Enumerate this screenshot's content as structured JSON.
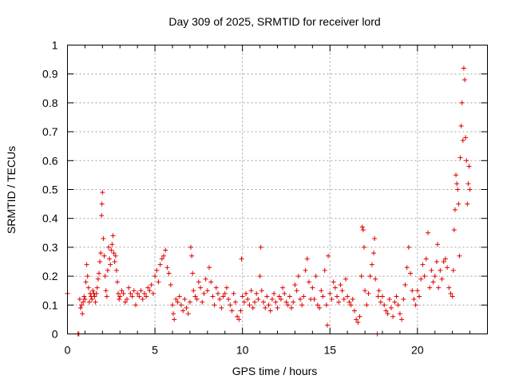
{
  "chart_data": {
    "type": "scatter",
    "title": "Day 309 of 2025, SRMTID for receiver lord",
    "xlabel": "GPS time / hours",
    "ylabel": "SRMTID / TECUs",
    "xlim": [
      0,
      24
    ],
    "ylim": [
      0,
      1
    ],
    "xticks": [
      0,
      5,
      10,
      15,
      20
    ],
    "yticks": [
      0,
      0.1,
      0.2,
      0.3,
      0.4,
      0.5,
      0.6,
      0.7,
      0.8,
      0.9,
      1
    ],
    "xtick_labels": [
      "0",
      "5",
      "10",
      "15",
      "20"
    ],
    "ytick_labels": [
      "0",
      "0.1",
      "0.2",
      "0.3",
      "0.4",
      "0.5",
      "0.6",
      "0.7",
      "0.8",
      "0.9",
      "1"
    ],
    "grid": true,
    "marker": "plus",
    "color": "#e00000",
    "series": [
      {
        "name": "SRMTID",
        "points": [
          [
            0.0,
            0.14
          ],
          [
            0.6,
            0.0
          ],
          [
            0.65,
            0.0
          ],
          [
            0.7,
            0.12
          ],
          [
            0.75,
            0.09
          ],
          [
            0.8,
            0.1
          ],
          [
            0.85,
            0.07
          ],
          [
            0.9,
            0.11
          ],
          [
            0.95,
            0.13
          ],
          [
            1.0,
            0.12
          ],
          [
            1.05,
            0.18
          ],
          [
            1.1,
            0.24
          ],
          [
            1.15,
            0.2
          ],
          [
            1.2,
            0.16
          ],
          [
            1.25,
            0.11
          ],
          [
            1.3,
            0.14
          ],
          [
            1.35,
            0.13
          ],
          [
            1.4,
            0.12
          ],
          [
            1.45,
            0.15
          ],
          [
            1.5,
            0.14
          ],
          [
            1.55,
            0.13
          ],
          [
            1.6,
            0.11
          ],
          [
            1.65,
            0.14
          ],
          [
            1.7,
            0.16
          ],
          [
            1.75,
            0.19
          ],
          [
            1.8,
            0.21
          ],
          [
            1.85,
            0.25
          ],
          [
            1.9,
            0.28
          ],
          [
            1.95,
            0.41
          ],
          [
            1.97,
            0.45
          ],
          [
            2.0,
            0.49
          ],
          [
            2.05,
            0.33
          ],
          [
            2.1,
            0.27
          ],
          [
            2.15,
            0.2
          ],
          [
            2.2,
            0.15
          ],
          [
            2.25,
            0.13
          ],
          [
            2.3,
            0.22
          ],
          [
            2.35,
            0.3
          ],
          [
            2.4,
            0.26
          ],
          [
            2.45,
            0.24
          ],
          [
            2.5,
            0.29
          ],
          [
            2.55,
            0.31
          ],
          [
            2.6,
            0.34
          ],
          [
            2.65,
            0.28
          ],
          [
            2.7,
            0.25
          ],
          [
            2.75,
            0.27
          ],
          [
            2.8,
            0.22
          ],
          [
            2.85,
            0.18
          ],
          [
            2.9,
            0.14
          ],
          [
            2.95,
            0.12
          ],
          [
            3.0,
            0.13
          ],
          [
            3.1,
            0.15
          ],
          [
            3.2,
            0.14
          ],
          [
            3.3,
            0.11
          ],
          [
            3.4,
            0.12
          ],
          [
            3.5,
            0.16
          ],
          [
            3.6,
            0.14
          ],
          [
            3.7,
            0.13
          ],
          [
            3.8,
            0.15
          ],
          [
            3.9,
            0.1
          ],
          [
            4.0,
            0.14
          ],
          [
            4.1,
            0.13
          ],
          [
            4.2,
            0.15
          ],
          [
            4.3,
            0.12
          ],
          [
            4.4,
            0.14
          ],
          [
            4.5,
            0.13
          ],
          [
            4.6,
            0.16
          ],
          [
            4.7,
            0.15
          ],
          [
            4.8,
            0.17
          ],
          [
            4.9,
            0.14
          ],
          [
            5.0,
            0.2
          ],
          [
            5.1,
            0.22
          ],
          [
            5.2,
            0.18
          ],
          [
            5.3,
            0.24
          ],
          [
            5.4,
            0.26
          ],
          [
            5.5,
            0.27
          ],
          [
            5.6,
            0.29
          ],
          [
            5.7,
            0.23
          ],
          [
            5.8,
            0.21
          ],
          [
            5.9,
            0.17
          ],
          [
            6.0,
            0.1
          ],
          [
            6.05,
            0.07
          ],
          [
            6.1,
            0.05
          ],
          [
            6.2,
            0.12
          ],
          [
            6.3,
            0.11
          ],
          [
            6.4,
            0.13
          ],
          [
            6.5,
            0.1
          ],
          [
            6.6,
            0.08
          ],
          [
            6.7,
            0.12
          ],
          [
            6.8,
            0.09
          ],
          [
            6.9,
            0.07
          ],
          [
            7.0,
            0.11
          ],
          [
            7.05,
            0.3
          ],
          [
            7.1,
            0.27
          ],
          [
            7.15,
            0.21
          ],
          [
            7.2,
            0.15
          ],
          [
            7.3,
            0.13
          ],
          [
            7.4,
            0.12
          ],
          [
            7.5,
            0.18
          ],
          [
            7.6,
            0.16
          ],
          [
            7.7,
            0.11
          ],
          [
            7.8,
            0.14
          ],
          [
            7.9,
            0.19
          ],
          [
            8.0,
            0.15
          ],
          [
            8.1,
            0.23
          ],
          [
            8.2,
            0.18
          ],
          [
            8.3,
            0.13
          ],
          [
            8.4,
            0.1
          ],
          [
            8.5,
            0.16
          ],
          [
            8.6,
            0.14
          ],
          [
            8.7,
            0.12
          ],
          [
            8.8,
            0.09
          ],
          [
            8.9,
            0.13
          ],
          [
            9.0,
            0.14
          ],
          [
            9.1,
            0.16
          ],
          [
            9.2,
            0.12
          ],
          [
            9.3,
            0.1
          ],
          [
            9.4,
            0.08
          ],
          [
            9.5,
            0.14
          ],
          [
            9.6,
            0.11
          ],
          [
            9.7,
            0.06
          ],
          [
            9.8,
            0.05
          ],
          [
            9.9,
            0.08
          ],
          [
            9.95,
            0.26
          ],
          [
            10.0,
            0.13
          ],
          [
            10.1,
            0.11
          ],
          [
            10.2,
            0.14
          ],
          [
            10.3,
            0.12
          ],
          [
            10.4,
            0.1
          ],
          [
            10.5,
            0.15
          ],
          [
            10.6,
            0.09
          ],
          [
            10.7,
            0.11
          ],
          [
            10.8,
            0.14
          ],
          [
            10.9,
            0.12
          ],
          [
            11.0,
            0.2
          ],
          [
            11.05,
            0.3
          ],
          [
            11.1,
            0.15
          ],
          [
            11.2,
            0.11
          ],
          [
            11.3,
            0.09
          ],
          [
            11.4,
            0.13
          ],
          [
            11.5,
            0.1
          ],
          [
            11.6,
            0.08
          ],
          [
            11.7,
            0.12
          ],
          [
            11.8,
            0.14
          ],
          [
            11.9,
            0.11
          ],
          [
            12.0,
            0.09
          ],
          [
            12.1,
            0.13
          ],
          [
            12.2,
            0.12
          ],
          [
            12.3,
            0.16
          ],
          [
            12.4,
            0.14
          ],
          [
            12.5,
            0.11
          ],
          [
            12.6,
            0.1
          ],
          [
            12.7,
            0.13
          ],
          [
            12.8,
            0.09
          ],
          [
            12.9,
            0.11
          ],
          [
            13.0,
            0.17
          ],
          [
            13.1,
            0.15
          ],
          [
            13.2,
            0.2
          ],
          [
            13.3,
            0.12
          ],
          [
            13.4,
            0.1
          ],
          [
            13.5,
            0.13
          ],
          [
            13.6,
            0.22
          ],
          [
            13.7,
            0.26
          ],
          [
            13.8,
            0.18
          ],
          [
            13.9,
            0.12
          ],
          [
            14.0,
            0.16
          ],
          [
            14.1,
            0.12
          ],
          [
            14.2,
            0.2
          ],
          [
            14.3,
            0.1
          ],
          [
            14.4,
            0.09
          ],
          [
            14.5,
            0.15
          ],
          [
            14.6,
            0.13
          ],
          [
            14.7,
            0.22
          ],
          [
            14.8,
            0.1
          ],
          [
            14.85,
            0.03
          ],
          [
            14.9,
            0.27
          ],
          [
            15.0,
            0.14
          ],
          [
            15.1,
            0.12
          ],
          [
            15.2,
            0.18
          ],
          [
            15.3,
            0.16
          ],
          [
            15.4,
            0.13
          ],
          [
            15.5,
            0.11
          ],
          [
            15.6,
            0.17
          ],
          [
            15.7,
            0.15
          ],
          [
            15.8,
            0.12
          ],
          [
            15.9,
            0.19
          ],
          [
            16.0,
            0.13
          ],
          [
            16.1,
            0.11
          ],
          [
            16.2,
            0.1
          ],
          [
            16.3,
            0.12
          ],
          [
            16.4,
            0.08
          ],
          [
            16.5,
            0.05
          ],
          [
            16.6,
            0.04
          ],
          [
            16.7,
            0.06
          ],
          [
            16.8,
            0.2
          ],
          [
            16.85,
            0.37
          ],
          [
            16.9,
            0.36
          ],
          [
            16.95,
            0.3
          ],
          [
            17.0,
            0.15
          ],
          [
            17.1,
            0.1
          ],
          [
            17.2,
            0.14
          ],
          [
            17.3,
            0.2
          ],
          [
            17.4,
            0.24
          ],
          [
            17.5,
            0.28
          ],
          [
            17.55,
            0.33
          ],
          [
            17.6,
            0.19
          ],
          [
            17.7,
            0.0
          ],
          [
            17.75,
            0.13
          ],
          [
            17.8,
            0.15
          ],
          [
            17.9,
            0.11
          ],
          [
            18.0,
            0.13
          ],
          [
            18.1,
            0.1
          ],
          [
            18.2,
            0.08
          ],
          [
            18.3,
            0.07
          ],
          [
            18.4,
            0.12
          ],
          [
            18.5,
            0.09
          ],
          [
            18.6,
            0.06
          ],
          [
            18.7,
            0.11
          ],
          [
            18.8,
            0.13
          ],
          [
            18.9,
            0.1
          ],
          [
            19.0,
            0.07
          ],
          [
            19.1,
            0.05
          ],
          [
            19.2,
            0.12
          ],
          [
            19.3,
            0.17
          ],
          [
            19.4,
            0.23
          ],
          [
            19.5,
            0.3
          ],
          [
            19.6,
            0.21
          ],
          [
            19.7,
            0.15
          ],
          [
            19.8,
            0.12
          ],
          [
            19.9,
            0.1
          ],
          [
            20.0,
            0.15
          ],
          [
            20.1,
            0.13
          ],
          [
            20.2,
            0.19
          ],
          [
            20.3,
            0.24
          ],
          [
            20.4,
            0.2
          ],
          [
            20.5,
            0.26
          ],
          [
            20.6,
            0.35
          ],
          [
            20.7,
            0.16
          ],
          [
            20.8,
            0.22
          ],
          [
            20.9,
            0.18
          ],
          [
            21.0,
            0.2
          ],
          [
            21.1,
            0.25
          ],
          [
            21.15,
            0.31
          ],
          [
            21.2,
            0.16
          ],
          [
            21.3,
            0.22
          ],
          [
            21.4,
            0.19
          ],
          [
            21.5,
            0.25
          ],
          [
            21.6,
            0.26
          ],
          [
            21.7,
            0.23
          ],
          [
            21.8,
            0.16
          ],
          [
            21.9,
            0.14
          ],
          [
            22.0,
            0.13
          ],
          [
            22.05,
            0.22
          ],
          [
            22.1,
            0.36
          ],
          [
            22.15,
            0.43
          ],
          [
            22.2,
            0.55
          ],
          [
            22.25,
            0.52
          ],
          [
            22.3,
            0.5
          ],
          [
            22.35,
            0.45
          ],
          [
            22.4,
            0.27
          ],
          [
            22.45,
            0.61
          ],
          [
            22.5,
            0.72
          ],
          [
            22.55,
            0.8
          ],
          [
            22.6,
            0.67
          ],
          [
            22.65,
            0.92
          ],
          [
            22.7,
            0.88
          ],
          [
            22.75,
            0.68
          ],
          [
            22.8,
            0.6
          ],
          [
            22.85,
            0.45
          ],
          [
            22.9,
            0.52
          ],
          [
            22.95,
            0.58
          ],
          [
            23.0,
            0.5
          ]
        ]
      }
    ]
  }
}
